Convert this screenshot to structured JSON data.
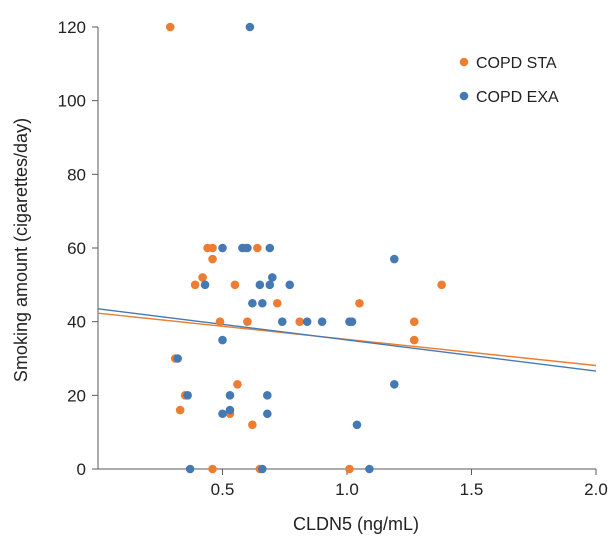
{
  "chart_data": {
    "type": "scatter",
    "xlabel": "CLDN5 (ng/mL)",
    "ylabel": "Smoking amount (cigarettes/day)",
    "xlim": [
      0,
      2.0
    ],
    "ylim": [
      0,
      120
    ],
    "x_ticks": [
      {
        "value": 0.5,
        "label": "0.5"
      },
      {
        "value": 1.0,
        "label": "1.0"
      },
      {
        "value": 1.5,
        "label": "1.5"
      },
      {
        "value": 2.0,
        "label": "2.0"
      }
    ],
    "y_ticks": [
      {
        "value": 0,
        "label": "0"
      },
      {
        "value": 20,
        "label": "20"
      },
      {
        "value": 40,
        "label": "40"
      },
      {
        "value": 60,
        "label": "60"
      },
      {
        "value": 80,
        "label": "80"
      },
      {
        "value": 100,
        "label": "100"
      },
      {
        "value": 120,
        "label": "120"
      }
    ],
    "grid": false,
    "legend_position": "top-right",
    "series": [
      {
        "name": "COPD STA",
        "color": "#ED7D31",
        "points": [
          [
            0.29,
            120
          ],
          [
            0.31,
            30
          ],
          [
            0.33,
            16
          ],
          [
            0.35,
            20
          ],
          [
            0.39,
            50
          ],
          [
            0.42,
            52
          ],
          [
            0.44,
            60
          ],
          [
            0.46,
            60
          ],
          [
            0.46,
            57
          ],
          [
            0.49,
            40
          ],
          [
            0.46,
            0
          ],
          [
            0.53,
            15
          ],
          [
            0.55,
            50
          ],
          [
            0.56,
            23
          ],
          [
            0.59,
            60
          ],
          [
            0.6,
            40
          ],
          [
            0.62,
            12
          ],
          [
            0.64,
            60
          ],
          [
            0.65,
            0
          ],
          [
            0.72,
            45
          ],
          [
            0.81,
            40
          ],
          [
            1.01,
            0
          ],
          [
            1.05,
            45
          ],
          [
            1.27,
            40
          ],
          [
            1.27,
            35
          ],
          [
            1.38,
            50
          ]
        ],
        "trendline": {
          "y_at_xmin": 42.3,
          "y_at_xmax": 28.1
        }
      },
      {
        "name": "COPD EXA",
        "color": "#4579B4",
        "points": [
          [
            0.61,
            120
          ],
          [
            0.32,
            30
          ],
          [
            0.36,
            20
          ],
          [
            0.37,
            0
          ],
          [
            0.43,
            50
          ],
          [
            0.5,
            60
          ],
          [
            0.5,
            35
          ],
          [
            0.5,
            15
          ],
          [
            0.53,
            16
          ],
          [
            0.53,
            20
          ],
          [
            0.58,
            60
          ],
          [
            0.6,
            60
          ],
          [
            0.62,
            45
          ],
          [
            0.65,
            50
          ],
          [
            0.66,
            45
          ],
          [
            0.66,
            0
          ],
          [
            0.68,
            15
          ],
          [
            0.68,
            20
          ],
          [
            0.69,
            60
          ],
          [
            0.69,
            50
          ],
          [
            0.7,
            52
          ],
          [
            0.74,
            40
          ],
          [
            0.77,
            50
          ],
          [
            0.84,
            40
          ],
          [
            0.9,
            40
          ],
          [
            1.01,
            40
          ],
          [
            1.02,
            40
          ],
          [
            1.04,
            12
          ],
          [
            1.09,
            0
          ],
          [
            1.19,
            57
          ],
          [
            1.19,
            23
          ]
        ],
        "trendline": {
          "y_at_xmin": 43.5,
          "y_at_xmax": 26.6
        }
      }
    ]
  }
}
